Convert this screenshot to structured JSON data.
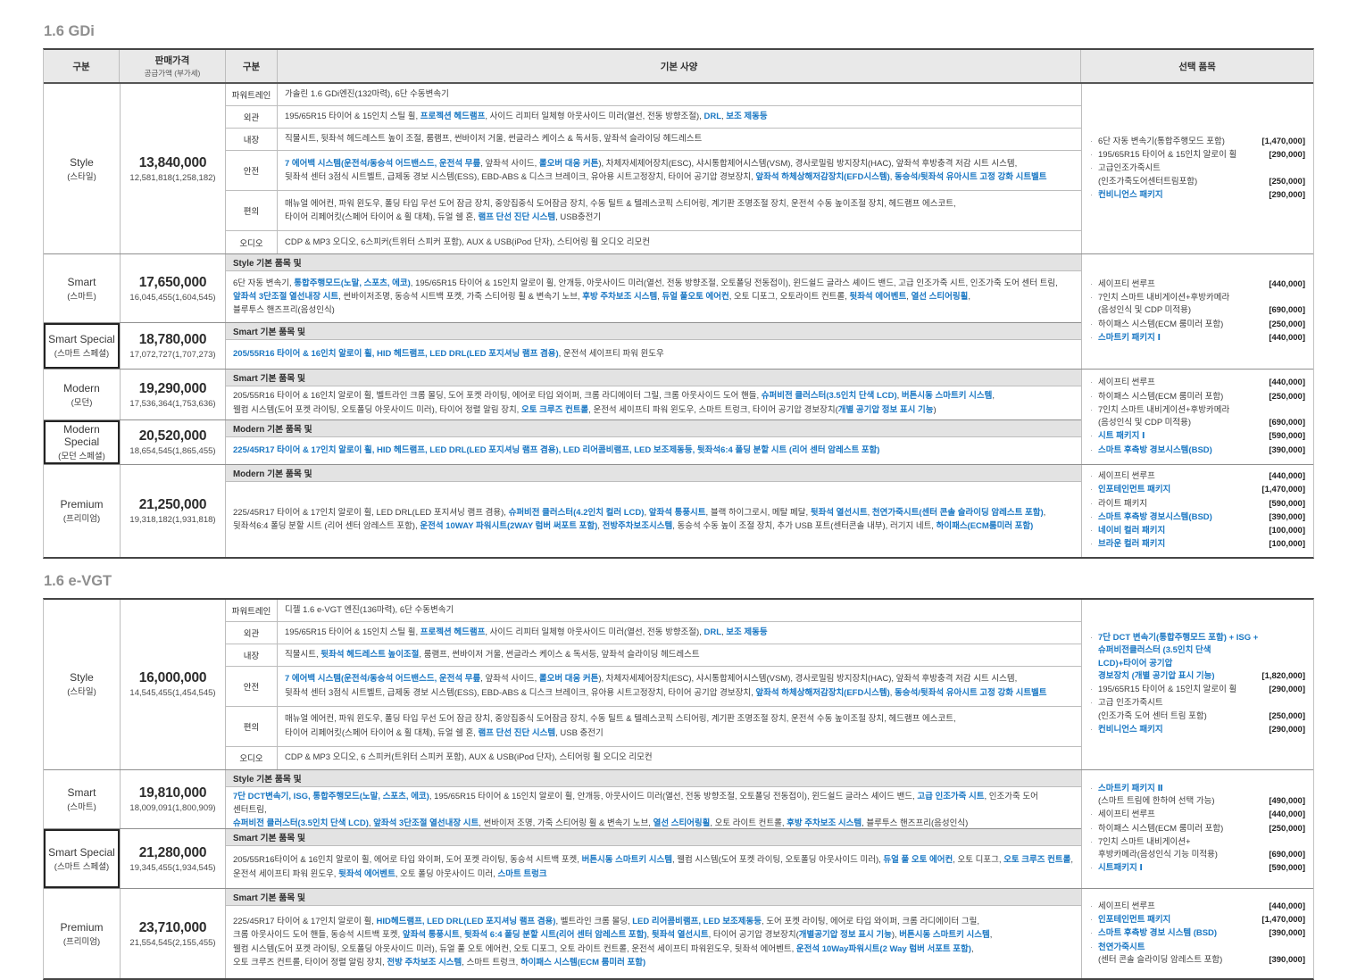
{
  "accent_color": "#1b78c3",
  "columns": {
    "trim": "구분",
    "price": "판매가격",
    "price_sub": "공급가액 (부가세)",
    "cat": "구분",
    "spec": "기본 사양",
    "opt": "선택 품목"
  },
  "gdi": {
    "title": "1.6 GDi",
    "style": {
      "name": "Style",
      "kr": "(스타일)",
      "price": "13,840,000",
      "supply": "12,581,818(1,258,182)",
      "specs": [
        {
          "label": "파워트레인",
          "text": "가솔린 1.6 GDi엔진(132마력), 6단 수동변속기"
        },
        {
          "label": "외관",
          "text": "195/65R15 타이어 & 15인치 스틸 휠, **프로젝션 헤드램프**, 사이드 리피터 일체형 아웃사이드 미러(열선, 전동 방향조절), **DRL**, **보조 제동등**"
        },
        {
          "label": "내장",
          "text": "직물시트, 뒷좌석 헤드레스트 높이 조절, 룸램프, 썬바이저 거울, 썬글라스 케이스 & 독서등, 앞좌석 슬라이딩 헤드레스트"
        },
        {
          "label": "안전",
          "text": "**7 에어백 시스템(운전석/동승석 어드밴스드, 운전석 무릎**, 앞좌석 사이드, **롤오버 대응 커튼**), 차체자세제어장치(ESC), 샤시통합제어시스템(VSM), 경사로밀림 방지장치(HAC), 앞좌석 후방충격 저감 시트 시스템,\n뒷좌석 센터 3점식 시트벨트, 급제동 경보 시스템(ESS), EBD-ABS & 디스크 브레이크, 유아용 시트고정장치, 타이어 공기압 경보장치, **앞좌석 하체상해저감장치(EFD시스템)**, **동승석/뒷좌석 유아시트 고정 강화 시트벨트**"
        },
        {
          "label": "편의",
          "text": "매뉴얼 에어컨, 파워 윈도우, 폴딩 타입 무선 도어 잠금 장치, 중앙집중식 도어잠금 장치, 수동 틸트 & 텔레스코픽 스티어링, 계기판 조명조절 장치, 운전석 수동 높이조절 장치, 헤드램프 에스코트,\n타이어 리페어킷(스페어 타이어 & 휠 대체), 듀얼 쉘 혼, **램프 단선 진단 시스템**, USB충전기"
        },
        {
          "label": "오디오",
          "text": "CDP & MP3 오디오, 6스피커(트위터 스피커 포함), AUX & USB(iPod 단자), 스티어링 휠 오디오 리모컨"
        }
      ],
      "options": [
        {
          "lines": [
            "6단 자동 변속기(통합주행모드 포함)"
          ],
          "price": "[1,470,000]"
        },
        {
          "lines": [
            "195/65R15 타이어 & 15인치 알로이 휠"
          ],
          "price": "[290,000]"
        },
        {
          "lines": [
            "고급인조가죽시트",
            "(인조가죽도어센터트림포함)"
          ],
          "price": "[250,000]"
        },
        {
          "lines": [
            "**컨비니언스 패키지**"
          ],
          "price": "[290,000]"
        }
      ]
    },
    "smart": {
      "name": "Smart",
      "kr": "(스마트)",
      "price": "17,650,000",
      "supply": "16,045,455(1,604,545)",
      "base": "Style 기본 품목 및",
      "text": "6단 자동 변속기, **통합주행모드(노말, 스포츠, 에코)**, 195/65R15 타이어 & 15인치 알로이 휠, 안개등, 아웃사이드 미러(열선, 전동 방향조절, 오토폴딩 전동접이), 윈드쉴드 글라스 셰이드 밴드, 고급 인조가죽 시트, 인조가죽 도어 센터 트림,\n**앞좌석 3단조절 열선내장 시트**, 썬바이저조명, 동승석 시트백 포켓, 가죽 스티어링 휠 & 변속기 노브, **후방 주차보조 시스템**, **듀얼 풀오토 에어컨**, 오토 디포그, 오토라이트 컨트롤, **뒷좌석 에어벤트**, **열선 스티어링휠**,\n블루투스 핸즈프리(음성인식)"
    },
    "smart_special": {
      "name": "Smart Special",
      "kr": "(스마트 스페셜)",
      "price": "18,780,000",
      "supply": "17,072,727(1,707,273)",
      "base": "Smart 기본 품목 및",
      "text": "**205/55R16 타이어 & 16인치 알로이 휠, HID 헤드램프, LED DRL(LED 포지셔닝 램프 겸용)**, 운전석 세이프티 파워 윈도우"
    },
    "smart_options": [
      {
        "lines": [
          "세이프티 썬루프"
        ],
        "price": "[440,000]"
      },
      {
        "lines": [
          "7인치 스마트 내비게이션+후방카메라",
          "(음성인식 및 CDP 미적용)"
        ],
        "price": "[690,000]"
      },
      {
        "lines": [
          "하이패스 시스템(ECM 룸미러 포함)"
        ],
        "price": "[250,000]"
      },
      {
        "lines": [
          "**스마트키 패키지 Ⅰ**"
        ],
        "price": "[440,000]"
      }
    ],
    "modern": {
      "name": "Modern",
      "kr": "(모던)",
      "price": "19,290,000",
      "supply": "17,536,364(1,753,636)",
      "base": "Smart 기본 품목 및",
      "text": "205/55R16 타이어 & 16인치 알로이 휠, 벨트라인 크롬 몰딩, 도어 포켓 라이팅, 에어로 타입 와이퍼, 크롬 라디에이터 그릴, 크롬 아웃사이드 도어 핸들, **슈퍼비전 클러스터(3.5인치 단색 LCD)**, **버튼시동 스마트키 시스템**,\n웰컴 시스템(도어 포켓 라이팅, 오토폴딩 아웃사이드 미러), 타이어 정렬 알림 장치, **오토 크루즈 컨트롤**, 운전석 세이프티 파워 윈도우, 스마트 트렁크, 타이어 공기압 경보장치(**개별 공기압 정보 표시 기능**)"
    },
    "modern_special": {
      "name": "Modern Special",
      "kr": "(모던 스페셜)",
      "price": "20,520,000",
      "supply": "18,654,545(1,865,455)",
      "base": "Modern 기본 품목 및",
      "text": "**225/45R17 타이어 & 17인치 알로이 휠, HID 헤드램프, LED DRL(LED 포지셔닝 램프 겸용), LED 리어콤비램프, LED 보조제동등, 뒷좌석6:4 폴딩 분할 시트 (리어 센터 암레스트 포함)**"
    },
    "modern_options": [
      {
        "lines": [
          "세이프티 썬루프"
        ],
        "price": "[440,000]"
      },
      {
        "lines": [
          "하이패스 시스템(ECM 룸미러 포함)"
        ],
        "price": "[250,000]"
      },
      {
        "lines": [
          "7인치 스마트 내비게이션+후방카메라",
          "(음성인식 및 CDP 미적용)"
        ],
        "price": "[690,000]"
      },
      {
        "lines": [
          "**시트 패키지 Ⅰ**"
        ],
        "price": "[590,000]"
      },
      {
        "lines": [
          "**스마트 후측방 경보시스템(BSD)**"
        ],
        "price": "[390,000]"
      }
    ],
    "premium": {
      "name": "Premium",
      "kr": "(프리미엄)",
      "price": "21,250,000",
      "supply": "19,318,182(1,931,818)",
      "base": "Modern 기본 품목 및",
      "text": "225/45R17 타이어 & 17인치 알로이 휠, LED DRL(LED 포지셔닝 램프 겸용), **슈퍼비전 클러스터(4.2인치 컬러 LCD)**, **앞좌석 통풍시트**, 블랙 하이그로시, 메탈 페달, **뒷좌석 열선시트**, **천연가죽시트(센터 콘솔 슬라이딩 암레스트 포함)**,\n뒷좌석6:4 폴딩 분할 시트 (리어 센터 암레스트 포함), **운전석 10WAY 파워시트(2WAY 럼버 써포트 포함)**, **전방주차보조시스템**, 동승석 수동 높이 조절 장치, 추가 USB 포트(센터콘솔 내부), 러기지 네트, **하이패스(ECM룸미러 포함)**",
      "options": [
        {
          "lines": [
            "세이프티 썬루프"
          ],
          "price": "[440,000]"
        },
        {
          "lines": [
            "**인포테인먼트 패키지**"
          ],
          "price": "[1,470,000]"
        },
        {
          "lines": [
            "라이트 패키지"
          ],
          "price": "[590,000]"
        },
        {
          "lines": [
            "**스마트 후측방 경보시스템(BSD)**"
          ],
          "price": "[390,000]"
        },
        {
          "lines": [
            "**네이비 컬러 패키지**"
          ],
          "price": "[100,000]"
        },
        {
          "lines": [
            "**브라운 컬러 패키지**"
          ],
          "price": "[100,000]"
        }
      ]
    }
  },
  "evgt": {
    "title": "1.6 e-VGT",
    "style": {
      "name": "Style",
      "kr": "(스타일)",
      "price": "16,000,000",
      "supply": "14,545,455(1,454,545)",
      "specs": [
        {
          "label": "파워트레인",
          "text": "디젤 1.6 e-VGT 엔진(136마력), 6단 수동변속기"
        },
        {
          "label": "외관",
          "text": "195/65R15 타이어 & 15인치 스틸 휠, **프로젝션 헤드램프**, 사이드 리피터 일체형 아웃사이드 미러(열선, 전동 방향조절), **DRL**, **보조 제동등**"
        },
        {
          "label": "내장",
          "text": "직물시트, **뒷좌석 헤드레스트 높이조절**, 룸램프, 썬바이저 거울, 썬글라스 케이스 & 독서등, 앞좌석 슬라이딩 헤드레스트"
        },
        {
          "label": "안전",
          "text": "**7 에어백 시스템(운전석/동승석 어드밴스드, 운전석 무릎**, 앞좌석 사이드, **롤오버 대응 커튼**), 차체자세제어장치(ESC), 샤시통합제어시스템(VSM), 경사로밀림 방지장치(HAC), 앞좌석 후방충격 저감 시트 시스템,\n뒷좌석 센터 3점식 시트벨트, 급제동 경보 시스템(ESS), EBD-ABS & 디스크 브레이크, 유아용 시트고정장치, 타이어 공기압 경보장치, **앞좌석 하체상해저감장치(EFD시스템)**, **동승석/뒷좌석 유아시트 고정 강화 시트벨트**"
        },
        {
          "label": "편의",
          "text": "매뉴얼 에어컨, 파워 윈도우, 폴딩 타입 무선 도어 잠금 장치, 중앙집중식 도어잠금 장치, 수동 틸트 & 텔레스코픽 스티어링, 계기판 조명조절 장치, 운전석 수동 높이조절 장치, 헤드램프 에스코트,\n타이어 리페어킷(스페어 타이어 & 휠 대체), 듀얼 쉘 혼, **램프 단선 진단 시스템**, USB 충전기"
        },
        {
          "label": "오디오",
          "text": "CDP & MP3 오디오, 6 스피커(트위터 스피커 포함), AUX & USB(iPod 단자), 스티어링 휠 오디오 리모컨"
        }
      ],
      "options": [
        {
          "lines": [
            "**7단 DCT 변속기(통합주행모드 포함) + ISG +**",
            "**슈퍼비전클러스터 (3.5인치 단색 LCD)+타이어 공기압**",
            "**경보장치 (개별 공기압 표시 기능)**"
          ],
          "price": "[1,820,000]"
        },
        {
          "lines": [
            "195/65R15 타이어 & 15인치 알로이 휠"
          ],
          "price": "[290,000]"
        },
        {
          "lines": [
            "고급 인조가죽시트",
            "(인조가죽 도어 센터 트림 포함)"
          ],
          "price": "[250,000]"
        },
        {
          "lines": [
            "**컨비니언스 패키지**"
          ],
          "price": "[290,000]"
        }
      ]
    },
    "smart": {
      "name": "Smart",
      "kr": "(스마트)",
      "price": "19,810,000",
      "supply": "18,009,091(1,800,909)",
      "base": "Style 기본 품목 및",
      "text": "**7단 DCT변속기, ISG, 통합주행모드(노말, 스포츠, 에코)**, 195/65R15 타이어 & 15인치 알로이 휠, 안개등, 아웃사이드 미러(열선, 전동 방향조절, 오토폴딩 전동접이), 윈드쉴드 글라스 셰이드 밴드, **고급 인조가죽 시트**, 인조가죽 도어 센터트림,\n**슈퍼비전 클러스터(3.5인치 단색 LCD)**, **앞좌석 3단조절 열선내장 시트**, 썬바이저 조명, 가죽 스티어링 휠 & 변속기 노브, **열선 스티어링휠**, 오토 라이트 컨트롤, **후방 주차보조 시스템**, 블루투스 핸즈프리(음성인식)"
    },
    "smart_special": {
      "name": "Smart Special",
      "kr": "(스마트 스페셜)",
      "price": "21,280,000",
      "supply": "19,345,455(1,934,545)",
      "base": "Smart 기본 품목 및",
      "text": "205/55R16타이어 & 16인치 알로이 휠, 에어로 타입 와이퍼, 도어 포켓 라이팅, 동승석 시트백 포켓, **버튼시동 스마트키 시스템**, 웰컴 시스템(도어 포켓 라이팅, 오토폴딩 아웃사이드 미러), **듀얼 풀 오토 에어컨**, 오토 디포그, **오토 크루즈 컨트롤**,\n운전석 세이프티 파워 윈도우, **뒷좌석 에어벤트**, 오토 폴딩 아웃사이드 미러, **스마트 트렁크**"
    },
    "smart_options": [
      {
        "lines": [
          "**스마트키 패키지 Ⅱ**",
          "(스마트 트림에 한하여 선택 가능)"
        ],
        "price": "[490,000]"
      },
      {
        "lines": [
          "세이프티 썬루프"
        ],
        "price": "[440,000]"
      },
      {
        "lines": [
          "하이패스 시스템(ECM 룸미러 포함)"
        ],
        "price": "[250,000]"
      },
      {
        "lines": [
          "7인치 스마트 내비게이션+",
          "후방카메라(음성인식 기능 미적용)"
        ],
        "price": "[690,000]"
      },
      {
        "lines": [
          "**시트패키지 Ⅰ**"
        ],
        "price": "[590,000]"
      }
    ],
    "premium": {
      "name": "Premium",
      "kr": "(프리미엄)",
      "price": "23,710,000",
      "supply": "21,554,545(2,155,455)",
      "base": "Smart 기본 품목 및",
      "text": "225/45R17 타이어 & 17인치 알로이 휠, **HID헤드램프, LED DRL(LED 포지셔닝 램프 겸용)**, 벨트라인 크롬 몰딩, **LED 리어콤비램프, LED 보조제동등**, 도어 포켓 라이팅, 에어로 타입 와이퍼, 크롬 라디에이터 그릴,\n크롬 아웃사이드 도어 핸들, 동승석 시트백 포켓, **앞좌석 통풍시트**, **뒷좌석 6:4 폴딩 분할 시트(리어 센터 암레스트 포함)**, **뒷좌석 열선시트**, 타이어 공기압 경보장치(**개별공기압 정보 표시 기능**), **버튼시동 스마트키 시스템**,\n웰컴 시스템(도어 포켓 라이팅, 오토폴딩 아웃사이드 미러), 듀얼 풀 오토 에어컨, 오토 디포그, 오토 라이트 컨트롤, 운전석 세이프티 파워윈도우, 뒷좌석 에어벤트, **운전석 10Way파워시트(2 Way 럼버 서포트 포함)**,\n오토 크루즈 컨트롤, 타이어 정렬 알림 장치, **전방 주차보조 시스템**, 스마트 트렁크, **하이패스 시스템(ECM 룸미러 포함)**",
      "options": [
        {
          "lines": [
            "세이프티 썬루프"
          ],
          "price": "[440,000]"
        },
        {
          "lines": [
            "**인포테인먼트 패키지**"
          ],
          "price": "[1,470,000]"
        },
        {
          "lines": [
            "**스마트 후측방 경보 시스템 (BSD)**"
          ],
          "price": "[390,000]"
        },
        {
          "lines": [
            "**천연가죽시트**",
            "(센터 콘솔 슬라이딩 암레스트 포함)"
          ],
          "price": "[390,000]"
        }
      ]
    }
  }
}
